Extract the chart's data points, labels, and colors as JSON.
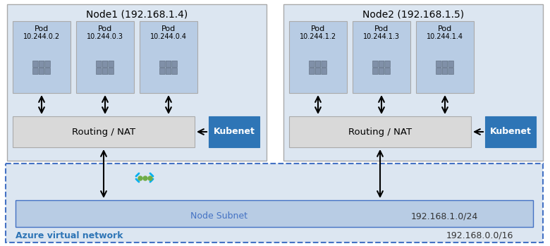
{
  "fig_width": 7.8,
  "fig_height": 3.49,
  "dpi": 100,
  "bg_color": "#ffffff",
  "node1_label": "Node1 (192.168.1.4)",
  "node2_label": "Node2 (192.168.1.5)",
  "node1_pods": [
    "Pod\n10.244.0.2",
    "Pod\n10.244.0.3",
    "Pod\n10.244.0.4"
  ],
  "node2_pods": [
    "Pod\n10.244.1.2",
    "Pod\n10.244.1.3",
    "Pod\n10.244.1.4"
  ],
  "routing_label": "Routing / NAT",
  "kubenet_label": "Kubenet",
  "node_subnet_label": "Node Subnet",
  "node_subnet_cidr": "192.168.1.0/24",
  "vnet_label": "Azure virtual network",
  "vnet_cidr": "192.168.0.0/16",
  "node_box_color": "#dce6f1",
  "node_box_edge": "#aaaaaa",
  "pod_box_color": "#b8cce4",
  "pod_box_edge": "#aaaaaa",
  "routing_box_color": "#d9d9d9",
  "routing_box_edge": "#aaaaaa",
  "kubenet_box_color": "#2e75b6",
  "kubenet_box_edge": "#2e75b6",
  "kubenet_text_color": "#ffffff",
  "subnet_box_color": "#b8cce4",
  "subnet_box_edge": "#4472c4",
  "vnet_box_color": "#dce6f1",
  "vnet_box_edge": "#4472c4",
  "vnet_label_color": "#2e75b6",
  "subnet_label_color": "#4472c4",
  "node_label_color": "#000000",
  "arrow_color": "#000000",
  "cyan_color": "#00b0f0",
  "green_dot_color": "#70ad47"
}
